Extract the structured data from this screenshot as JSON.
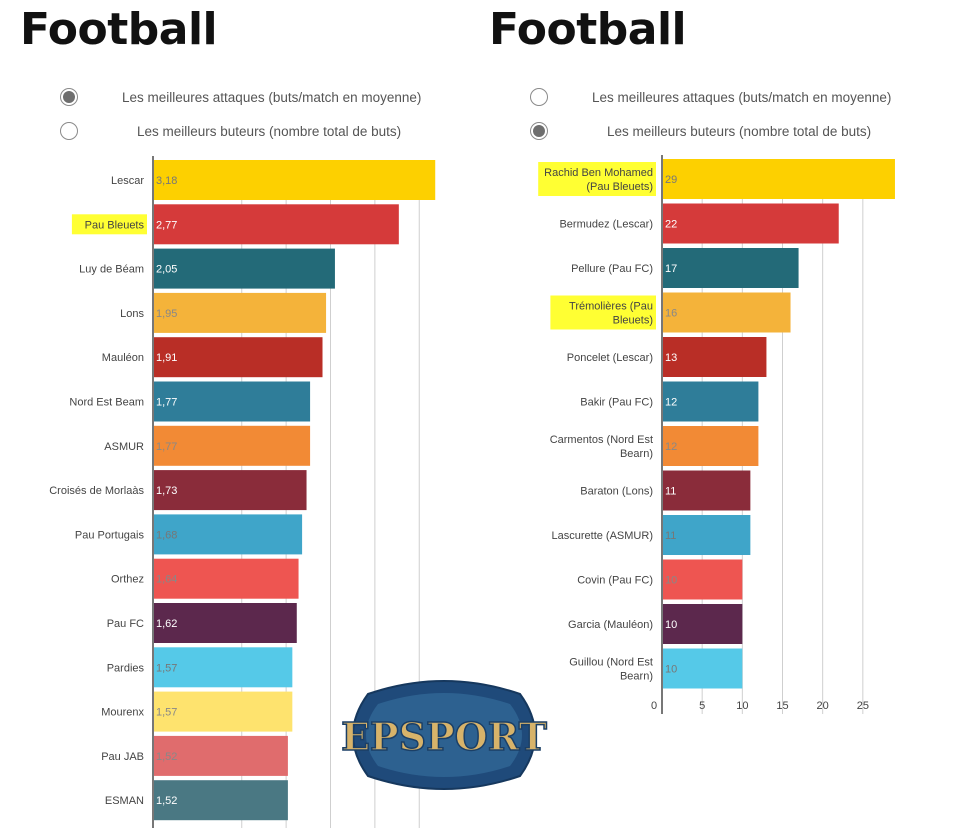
{
  "left_panel": {
    "title": "Football",
    "options": [
      {
        "label": "Les meilleures attaques (buts/match en moyenne)",
        "checked": true
      },
      {
        "label": "Les meilleurs buteurs (nombre total de buts)",
        "checked": false
      }
    ]
  },
  "right_panel": {
    "title": "Football",
    "options": [
      {
        "label": "Les meilleures attaques (buts/match en moyenne)",
        "checked": false
      },
      {
        "label": "Les meilleurs buteurs (nombre total de buts)",
        "checked": true
      }
    ]
  },
  "logo": {
    "text": "EPSPORT",
    "colors": {
      "outer": "#1f4a7a",
      "inner": "#2d6190",
      "text": "#d7b36a"
    }
  },
  "chart_data": [
    {
      "type": "bar",
      "orientation": "horizontal",
      "categories": [
        "Lescar",
        "Pau Bleuets",
        "Luy de Béam",
        "Lons",
        "Mauléon",
        "Nord Est Beam",
        "ASMUR",
        "Croisés de Morlaàs",
        "Pau Portugais",
        "Orthez",
        "Pau FC",
        "Pardies",
        "Mourenx",
        "Pau JAB",
        "ESMAN"
      ],
      "values": [
        3.18,
        2.77,
        2.05,
        1.95,
        1.91,
        1.77,
        1.77,
        1.73,
        1.68,
        1.64,
        1.62,
        1.57,
        1.57,
        1.52,
        1.52
      ],
      "value_labels": [
        "3,18",
        "2,77",
        "2,05",
        "1,95",
        "1,91",
        "1,77",
        "1,77",
        "1,73",
        "1,68",
        "1,64",
        "1,62",
        "1,57",
        "1,57",
        "1,52",
        "1,52"
      ],
      "highlighted": [
        "Pau Bleuets"
      ],
      "colors": [
        "#fdd000",
        "#d53a3a",
        "#236a78",
        "#f4b33a",
        "#b92e26",
        "#2f7d99",
        "#f28a35",
        "#8a2c3a",
        "#3fa5c9",
        "#ee5551",
        "#5c284d",
        "#55c9e8",
        "#fee36e",
        "#e06c6d",
        "#4a7883"
      ],
      "label_colors": [
        "#777",
        "#fff",
        "#fff",
        "#888",
        "#fff",
        "#fff",
        "#888",
        "#fff",
        "#777",
        "#888",
        "#fff",
        "#777",
        "#888",
        "#888",
        "#fff"
      ],
      "xlim": [
        0,
        3.2
      ],
      "gridlines": [
        1,
        1.5,
        2,
        2.5,
        3
      ],
      "grid": true
    },
    {
      "type": "bar",
      "orientation": "horizontal",
      "categories": [
        "Rachid Ben Mohamed (Pau Bleuets)",
        "Bermudez (Lescar)",
        "Pellure (Pau FC)",
        "Trémolières (Pau Bleuets)",
        "Poncelet (Lescar)",
        "Bakir (Pau FC)",
        "Carmentos (Nord Est Bearn)",
        "Baraton (Lons)",
        "Lascurette (ASMUR)",
        "Covin (Pau FC)",
        "Garcia (Mauléon)",
        "Guillou (Nord Est Bearn)"
      ],
      "values": [
        29,
        22,
        17,
        16,
        13,
        12,
        12,
        11,
        11,
        10,
        10,
        10
      ],
      "highlighted": [
        "Rachid Ben Mohamed (Pau Bleuets)",
        "Trémolières (Pau Bleuets)"
      ],
      "colors": [
        "#fdd000",
        "#d53a3a",
        "#236a78",
        "#f4b33a",
        "#b92e26",
        "#2f7d99",
        "#f28a35",
        "#8a2c3a",
        "#3fa5c9",
        "#ee5551",
        "#5c284d",
        "#55c9e8"
      ],
      "label_colors": [
        "#777",
        "#fff",
        "#fff",
        "#888",
        "#fff",
        "#fff",
        "#888",
        "#fff",
        "#777",
        "#888",
        "#fff",
        "#777"
      ],
      "xlim": [
        0,
        30
      ],
      "xticks": [
        0,
        5,
        10,
        15,
        20,
        25
      ],
      "grid": true
    }
  ]
}
